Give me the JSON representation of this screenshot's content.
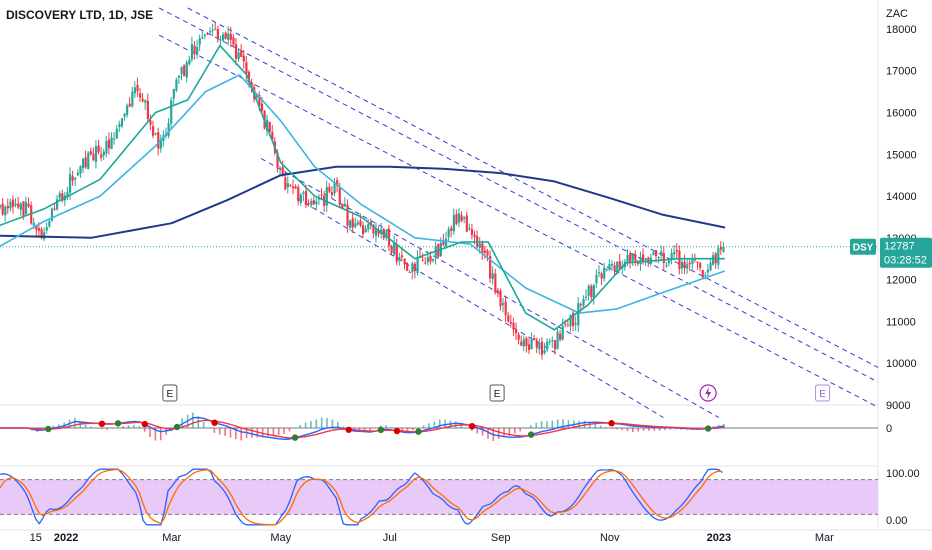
{
  "header": {
    "title": "DISCOVERY LTD, 1D, JSE"
  },
  "price_axis": {
    "currency": "ZAC",
    "ticks": [
      "18000",
      "17000",
      "16000",
      "15000",
      "14000",
      "13000",
      "12000",
      "11000",
      "10000",
      "9000"
    ]
  },
  "badges": {
    "symbol": "DSY",
    "price": "12787",
    "countdown": "03:28:52"
  },
  "events": [
    {
      "label": "E"
    },
    {
      "label": "E"
    },
    {
      "label": "E"
    }
  ],
  "macd_axis": {
    "ticks": [
      "0"
    ]
  },
  "stoch_axis": {
    "ticks": [
      "100.00",
      "0.00"
    ]
  },
  "x_axis": {
    "ticks": [
      {
        "label": "15",
        "bold": false
      },
      {
        "label": "2022",
        "bold": true
      },
      {
        "label": "Mar",
        "bold": false
      },
      {
        "label": "May",
        "bold": false
      },
      {
        "label": "Jul",
        "bold": false
      },
      {
        "label": "Sep",
        "bold": false
      },
      {
        "label": "Nov",
        "bold": false
      },
      {
        "label": "2023",
        "bold": true
      },
      {
        "label": "Mar",
        "bold": false
      }
    ]
  },
  "colors": {
    "up": "#26a69a",
    "down": "#f23645",
    "ma200": "#1e3a8a",
    "ma50": "#3bb6e0",
    "ma20": "#18a999",
    "channel": "#3b3bd6",
    "stoch_fill": "#e9c9f7"
  },
  "chart_data": {
    "type": "candlestick",
    "title": "DISCOVERY LTD, 1D, JSE",
    "ylabel": "ZAC",
    "ylim": [
      9000,
      18500
    ],
    "last_price": 12787,
    "price_path": [
      {
        "date": "2021-11-25",
        "close": 13700
      },
      {
        "date": "2021-12-10",
        "close": 13700
      },
      {
        "date": "2021-12-17",
        "close": 13100
      },
      {
        "date": "2022-01-05",
        "close": 14500
      },
      {
        "date": "2022-01-25",
        "close": 15300
      },
      {
        "date": "2022-02-10",
        "close": 16700
      },
      {
        "date": "2022-02-22",
        "close": 15100
      },
      {
        "date": "2022-03-05",
        "close": 16800
      },
      {
        "date": "2022-03-20",
        "close": 18100
      },
      {
        "date": "2022-04-01",
        "close": 17800
      },
      {
        "date": "2022-04-12",
        "close": 17000
      },
      {
        "date": "2022-04-22",
        "close": 15800
      },
      {
        "date": "2022-05-05",
        "close": 14100
      },
      {
        "date": "2022-05-20",
        "close": 13800
      },
      {
        "date": "2022-06-01",
        "close": 14200
      },
      {
        "date": "2022-06-10",
        "close": 13200
      },
      {
        "date": "2022-06-25",
        "close": 13300
      },
      {
        "date": "2022-07-10",
        "close": 12200
      },
      {
        "date": "2022-07-25",
        "close": 12500
      },
      {
        "date": "2022-08-08",
        "close": 13500
      },
      {
        "date": "2022-08-22",
        "close": 12700
      },
      {
        "date": "2022-09-05",
        "close": 11000
      },
      {
        "date": "2022-09-15",
        "close": 10400
      },
      {
        "date": "2022-09-28",
        "close": 10300
      },
      {
        "date": "2022-10-12",
        "close": 11100
      },
      {
        "date": "2022-10-25",
        "close": 12000
      },
      {
        "date": "2022-11-08",
        "close": 12400
      },
      {
        "date": "2022-11-22",
        "close": 12500
      },
      {
        "date": "2022-12-08",
        "close": 12500
      },
      {
        "date": "2022-12-22",
        "close": 12200
      },
      {
        "date": "2023-01-04",
        "close": 12787
      }
    ],
    "ma200": [
      {
        "date": "2021-11-25",
        "value": 13050
      },
      {
        "date": "2022-01-15",
        "value": 13000
      },
      {
        "date": "2022-03-01",
        "value": 13350
      },
      {
        "date": "2022-04-01",
        "value": 13900
      },
      {
        "date": "2022-05-01",
        "value": 14500
      },
      {
        "date": "2022-06-01",
        "value": 14700
      },
      {
        "date": "2022-07-01",
        "value": 14700
      },
      {
        "date": "2022-08-01",
        "value": 14650
      },
      {
        "date": "2022-09-01",
        "value": 14550
      },
      {
        "date": "2022-10-01",
        "value": 14350
      },
      {
        "date": "2022-11-01",
        "value": 13950
      },
      {
        "date": "2022-12-01",
        "value": 13550
      },
      {
        "date": "2023-01-04",
        "value": 13250
      }
    ],
    "ma50": [
      {
        "date": "2021-11-25",
        "value": 12800
      },
      {
        "date": "2021-12-20",
        "value": 13400
      },
      {
        "date": "2022-01-20",
        "value": 14000
      },
      {
        "date": "2022-02-20",
        "value": 15200
      },
      {
        "date": "2022-03-20",
        "value": 16500
      },
      {
        "date": "2022-04-08",
        "value": 16900
      },
      {
        "date": "2022-05-01",
        "value": 15800
      },
      {
        "date": "2022-05-20",
        "value": 14700
      },
      {
        "date": "2022-06-15",
        "value": 13800
      },
      {
        "date": "2022-07-15",
        "value": 13000
      },
      {
        "date": "2022-08-15",
        "value": 12850
      },
      {
        "date": "2022-09-15",
        "value": 11800
      },
      {
        "date": "2022-10-15",
        "value": 11200
      },
      {
        "date": "2022-11-05",
        "value": 11300
      },
      {
        "date": "2022-12-01",
        "value": 11700
      },
      {
        "date": "2023-01-04",
        "value": 12200
      }
    ],
    "ma20": [
      {
        "date": "2021-11-25",
        "value": 13300
      },
      {
        "date": "2021-12-20",
        "value": 13700
      },
      {
        "date": "2022-01-20",
        "value": 14400
      },
      {
        "date": "2022-02-20",
        "value": 16000
      },
      {
        "date": "2022-03-10",
        "value": 16300
      },
      {
        "date": "2022-03-28",
        "value": 17600
      },
      {
        "date": "2022-04-12",
        "value": 16900
      },
      {
        "date": "2022-05-01",
        "value": 14800
      },
      {
        "date": "2022-05-20",
        "value": 14000
      },
      {
        "date": "2022-06-15",
        "value": 13500
      },
      {
        "date": "2022-07-15",
        "value": 12500
      },
      {
        "date": "2022-08-10",
        "value": 12900
      },
      {
        "date": "2022-08-25",
        "value": 12900
      },
      {
        "date": "2022-09-15",
        "value": 11200
      },
      {
        "date": "2022-10-01",
        "value": 10800
      },
      {
        "date": "2022-10-20",
        "value": 11400
      },
      {
        "date": "2022-11-10",
        "value": 12400
      },
      {
        "date": "2022-12-10",
        "value": 12500
      },
      {
        "date": "2023-01-04",
        "value": 12500
      }
    ],
    "channel_lines": [
      {
        "from": {
          "date": "2022-02-22",
          "value": 18500
        },
        "to": {
          "date": "2023-03-31",
          "value": 9550
        }
      },
      {
        "from": {
          "date": "2022-02-22",
          "value": 17850
        },
        "to": {
          "date": "2023-03-31",
          "value": 8950
        }
      },
      {
        "from": {
          "date": "2022-03-10",
          "value": 18500
        },
        "to": {
          "date": "2023-03-31",
          "value": 9900
        }
      },
      {
        "from": {
          "date": "2022-04-20",
          "value": 14900
        },
        "to": {
          "date": "2023-01-01",
          "value": 8700
        }
      },
      {
        "from": {
          "date": "2022-05-10",
          "value": 13950
        },
        "to": {
          "date": "2022-12-01",
          "value": 8700
        }
      }
    ],
    "earnings_dates": [
      "2022-02-28",
      "2022-08-30",
      "2023-02-28"
    ],
    "macd": {
      "zero": 0
    },
    "stochastic": {
      "ylim": [
        0,
        100
      ],
      "upper": 80,
      "lower": 20
    }
  }
}
